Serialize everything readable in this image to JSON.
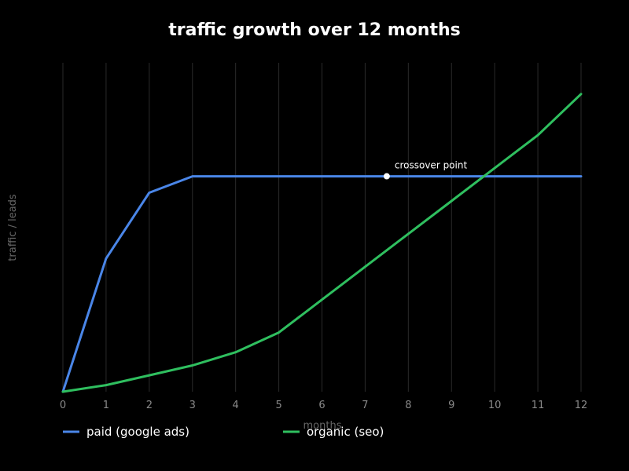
{
  "chart_data": {
    "type": "line",
    "title": "traffic growth over 12 months",
    "xlabel": "months",
    "ylabel": "traffic / leads",
    "x": [
      0,
      1,
      2,
      3,
      4,
      5,
      6,
      7,
      8,
      9,
      10,
      11,
      12
    ],
    "xlim": [
      0,
      12
    ],
    "ylim": [
      0,
      100
    ],
    "x_ticks": [
      "0",
      "1",
      "2",
      "3",
      "4",
      "5",
      "6",
      "7",
      "8",
      "9",
      "10",
      "11",
      "12"
    ],
    "y_ticks_visible": false,
    "grid": "vertical",
    "legend_position": "bottom",
    "series": [
      {
        "name": "paid (google ads)",
        "color": "#4a86e8",
        "values": [
          0,
          40.5,
          60.5,
          65.5,
          65.5,
          65.5,
          65.5,
          65.5,
          65.5,
          65.5,
          65.5,
          65.5,
          65.5
        ]
      },
      {
        "name": "organic (seo)",
        "color": "#2fbf5f",
        "values": [
          0,
          2,
          5,
          8,
          12,
          18,
          28,
          38,
          48,
          58,
          68,
          78,
          90.5
        ]
      }
    ],
    "annotations": [
      {
        "text": "crossover point",
        "x": 7.5,
        "y": 65.5,
        "marker_color": "#ffffff"
      }
    ],
    "colors": {
      "background": "#000000",
      "title": "#ffffff",
      "grid": "#2a2a2a",
      "tick_label": "#8a8a8a",
      "axis_label": "#666666",
      "annotation": "#ffffff",
      "legend_text": "#ffffff"
    }
  }
}
